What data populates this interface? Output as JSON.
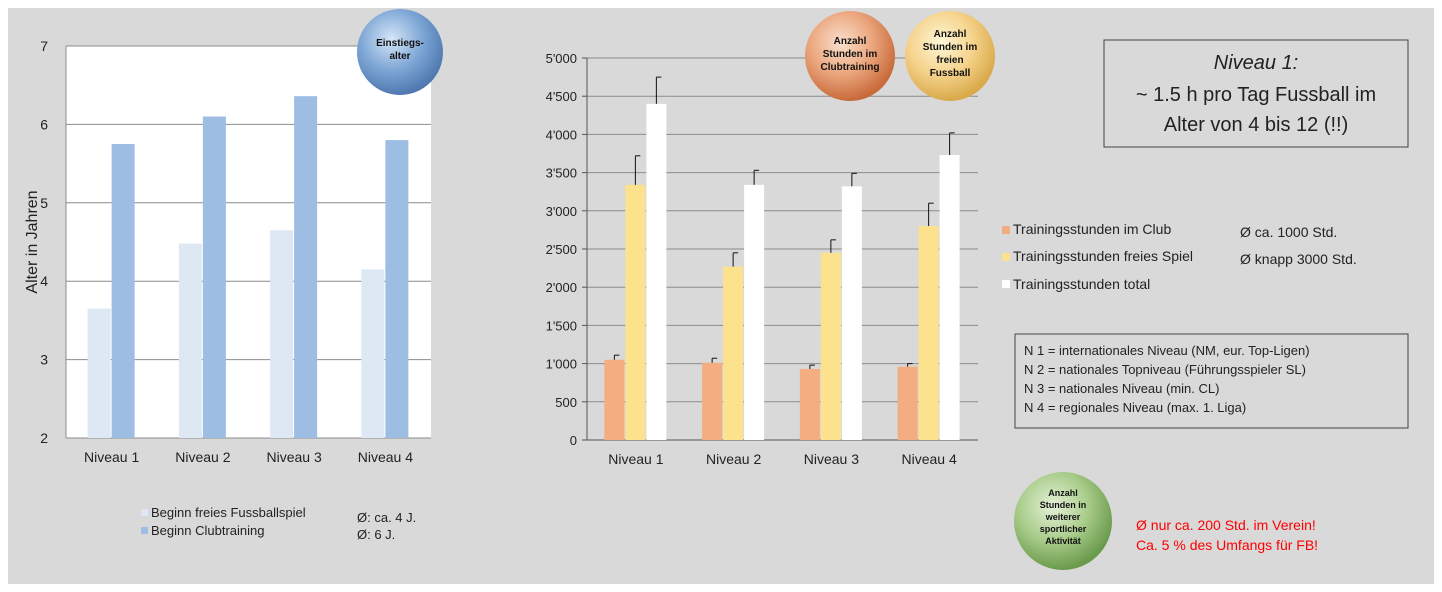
{
  "colors": {
    "background": "#d9d9d9",
    "plot_bg": "#ffffff",
    "light_blue": "#dde8f4",
    "mid_blue": "#9dbde3",
    "orange": "#f3ad80",
    "yellow": "#fde28e",
    "white_bar": "#ffffff",
    "red_note": "#ff0000"
  },
  "left_bubble": {
    "line1": "Einstiegs-",
    "line2": "alter"
  },
  "right_bubbles": [
    {
      "lines": [
        "Anzahl",
        "Stunden im",
        "Clubtraining"
      ]
    },
    {
      "lines": [
        "Anzahl",
        "Stunden im",
        "freien",
        "Fussball"
      ]
    }
  ],
  "green_bubble": {
    "lines": [
      "Anzahl",
      "Stunden in",
      "weiterer",
      "sportlicher",
      "Aktivität"
    ]
  },
  "niveau_box": {
    "line1": "Niveau 1:",
    "line2": "~ 1.5 h pro Tag Fussball im",
    "line3": "Alter von 4 bis 12 (!!)"
  },
  "right_legend_notes": [
    "Ø ca. 1000 Std.",
    "Ø knapp 3000 Std."
  ],
  "definitions": [
    "N 1 = internationales Niveau (NM, eur. Top-Ligen)",
    "N 2 = nationales Topniveau (Führungsspieler SL)",
    "N 3 = nationales Niveau (min. CL)",
    "N 4 = regionales Niveau (max. 1. Liga)"
  ],
  "left_legend_notes": [
    "Ø: ca. 4 J.",
    "Ø: 6 J."
  ],
  "red_note": {
    "line1": "Ø nur ca. 200 Std. im Verein!",
    "line2": "Ca. 5 % des Umfangs für FB!"
  },
  "chart_data": [
    {
      "type": "bar",
      "categories": [
        "Niveau 1",
        "Niveau 2",
        "Niveau 3",
        "Niveau 4"
      ],
      "ylabel": "Alter in Jahren",
      "ylim": [
        2,
        7
      ],
      "yticks": [
        "2",
        "3",
        "4",
        "5",
        "6",
        "7"
      ],
      "grid": true,
      "legend_placement": "bottom",
      "series": [
        {
          "name": "Beginn freies Fussballspiel",
          "values": [
            3.65,
            4.48,
            4.65,
            4.15
          ]
        },
        {
          "name": "Beginn Clubtraining",
          "values": [
            5.75,
            6.1,
            6.36,
            5.8
          ]
        }
      ]
    },
    {
      "type": "bar",
      "categories": [
        "Niveau 1",
        "Niveau 2",
        "Niveau 3",
        "Niveau 4"
      ],
      "ylim": [
        0,
        5000
      ],
      "yticks": [
        "0",
        "500",
        "1'000",
        "1'500",
        "2'000",
        "2'500",
        "3'000",
        "3'500",
        "4'000",
        "4'500",
        "5'000"
      ],
      "grid": true,
      "legend_placement": "right",
      "series": [
        {
          "name": "Trainingsstunden im Club",
          "values": [
            1050,
            1010,
            930,
            960
          ],
          "errors": [
            60,
            60,
            50,
            40
          ]
        },
        {
          "name": "Trainingsstunden freies Spiel",
          "values": [
            3340,
            2270,
            2450,
            2800
          ],
          "errors": [
            380,
            180,
            170,
            300
          ]
        },
        {
          "name": "Trainingsstunden total",
          "values": [
            4400,
            3340,
            3320,
            3730
          ],
          "errors": [
            350,
            190,
            170,
            290
          ]
        }
      ]
    }
  ]
}
